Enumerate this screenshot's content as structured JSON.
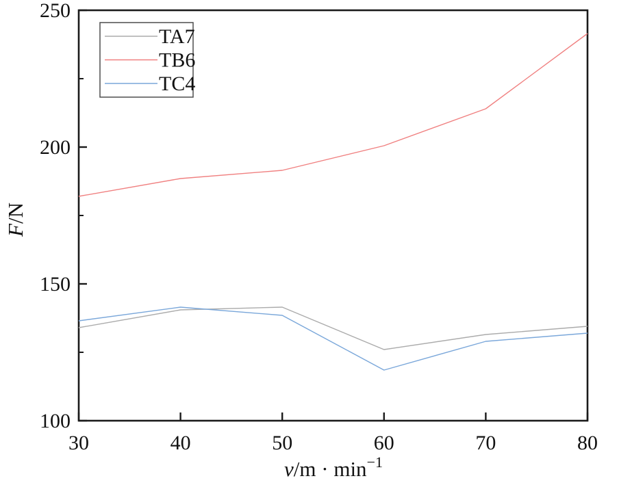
{
  "chart_data": {
    "type": "line",
    "title": "",
    "xlabel": "v/m · min⁻¹",
    "ylabel": "F/N",
    "x": [
      30,
      40,
      50,
      60,
      70,
      80
    ],
    "series": [
      {
        "name": "TA7",
        "color": "#ababab",
        "values": [
          134,
          140.5,
          141.5,
          126,
          131.5,
          134.5
        ]
      },
      {
        "name": "TB6",
        "color": "#f08080",
        "values": [
          182,
          188.5,
          191.5,
          200.5,
          214,
          241.5
        ]
      },
      {
        "name": "TC4",
        "color": "#7aa7da",
        "values": [
          136.5,
          141.5,
          138.5,
          118.5,
          129,
          132
        ]
      }
    ],
    "xlim": [
      30,
      80
    ],
    "ylim": [
      100,
      250
    ],
    "x_ticks": [
      30,
      40,
      50,
      60,
      70,
      80
    ],
    "y_ticks": [
      100,
      150,
      200,
      250
    ],
    "y_minor_ticks": [
      125,
      175,
      225
    ],
    "grid": false,
    "legend_position": "top-left"
  },
  "axis": {
    "y_title_italic": "F",
    "y_title_rest": "/N",
    "x_title_italic": "v",
    "x_title_rest": "/m · min",
    "x_title_sup": "−1"
  },
  "colors": {
    "axis": "#1a1a1a",
    "text": "#111111",
    "legend_border": "#4d4d4d",
    "background": "#ffffff"
  }
}
